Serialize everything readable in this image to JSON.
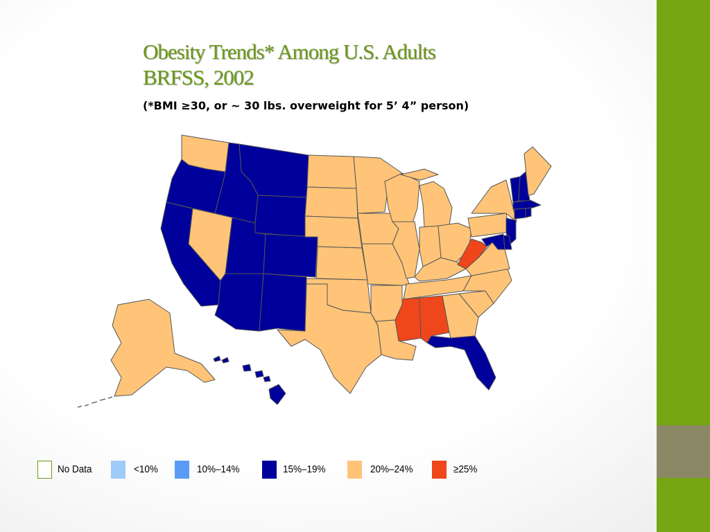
{
  "slide": {
    "title_line1": "Obesity Trends* Among U.S. Adults",
    "title_line2": "BRFSS, 2002",
    "subtitle": "(*BMI ≥30, or ~ 30 lbs. overweight for 5’ 4” person)"
  },
  "colors": {
    "no_data": "#ffffff",
    "lt10": "#9ecbf7",
    "c10_14": "#5b9bf5",
    "c15_19": "#00009a",
    "c20_24": "#ffc478",
    "ge25": "#f0461c",
    "accent_green": "#76a712",
    "accent_gray": "#8b8866",
    "title_green": "#6a9a16"
  },
  "legend": [
    {
      "label": "No Data",
      "color_key": "no_data"
    },
    {
      "label": "<10%",
      "color_key": "lt10"
    },
    {
      "label": "10%–14%",
      "color_key": "c10_14"
    },
    {
      "label": "15%–19%",
      "color_key": "c15_19"
    },
    {
      "label": "20%–24%",
      "color_key": "c20_24"
    },
    {
      "label": "≥25%",
      "color_key": "ge25"
    }
  ],
  "states": {
    "WA": "c20_24",
    "OR": "c15_19",
    "CA": "c15_19",
    "NV": "c20_24",
    "ID": "c15_19",
    "MT": "c15_19",
    "WY": "c15_19",
    "UT": "c15_19",
    "AZ": "c15_19",
    "CO": "c15_19",
    "NM": "c15_19",
    "ND": "c20_24",
    "SD": "c20_24",
    "NE": "c20_24",
    "KS": "c20_24",
    "OK": "c20_24",
    "TX": "c20_24",
    "MN": "c20_24",
    "IA": "c20_24",
    "MO": "c20_24",
    "AR": "c20_24",
    "LA": "c20_24",
    "WI": "c20_24",
    "IL": "c20_24",
    "MI": "c20_24",
    "IN": "c20_24",
    "OH": "c20_24",
    "KY": "c20_24",
    "TN": "c20_24",
    "MS": "ge25",
    "AL": "ge25",
    "GA": "c20_24",
    "FL": "c15_19",
    "SC": "c20_24",
    "NC": "c20_24",
    "VA": "c20_24",
    "WV": "ge25",
    "PA": "c20_24",
    "NY": "c20_24",
    "VT": "c15_19",
    "NH": "c15_19",
    "ME": "c20_24",
    "MA": "c15_19",
    "CT": "c15_19",
    "RI": "c15_19",
    "NJ": "c15_19",
    "DE": "c15_19",
    "MD": "c15_19",
    "AK": "c20_24",
    "HI": "c15_19"
  }
}
